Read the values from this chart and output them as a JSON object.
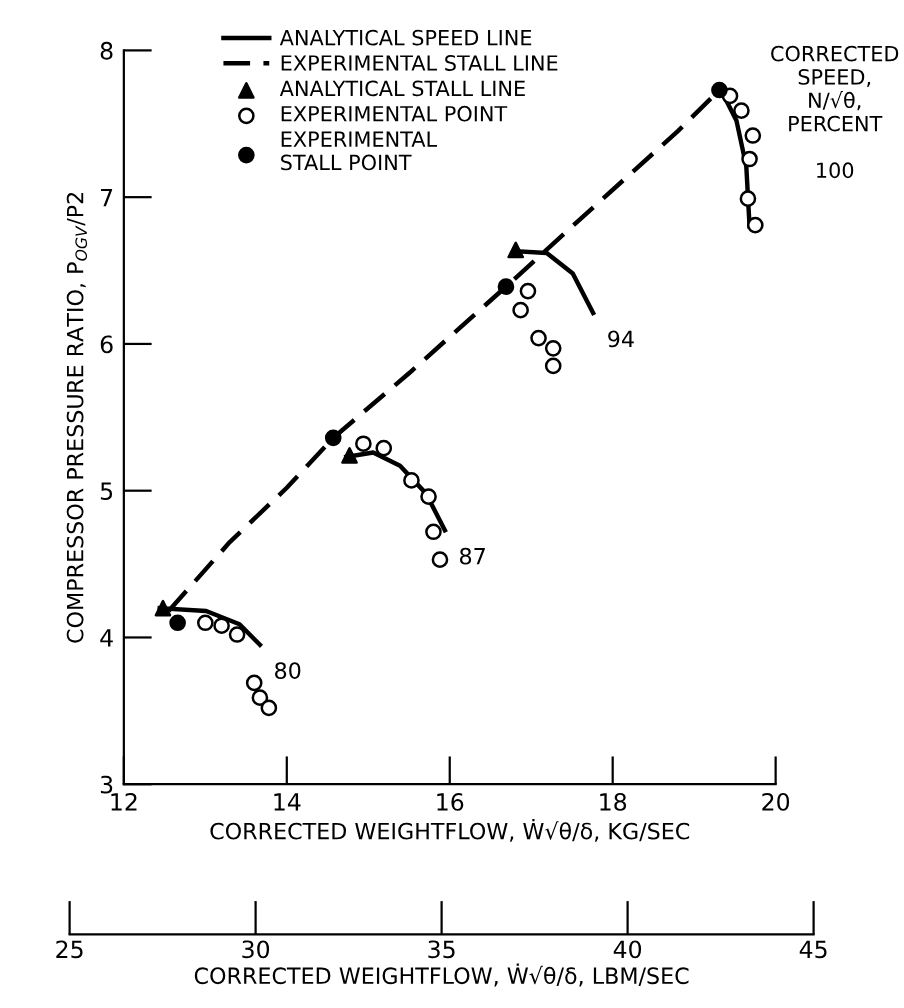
{
  "chart_data": {
    "type": "line",
    "xlabel": "CORRECTED WEIGHTFLOW, Ẇ√θ/δ, KG/SEC",
    "ylabel": "COMPRESSOR PRESSURE RATIO, P$_{OGV}$/P2",
    "x2label": "CORRECTED WEIGHTFLOW, Ẇ√θ/δ, LBM/SEC",
    "xlim": [
      12,
      20
    ],
    "xticks": [
      12,
      14,
      16,
      18,
      20
    ],
    "ylim": [
      3,
      8
    ],
    "yticks": [
      3,
      4,
      5,
      6,
      7,
      8
    ],
    "x2lim": [
      25,
      45
    ],
    "x2ticks": [
      25,
      30,
      35,
      40,
      45
    ],
    "legend": "top left",
    "grid": false,
    "series": [
      {
        "name": "ANALYTICAL SPEED LINE",
        "line_style": "solid",
        "marker": "none",
        "color": "#000000",
        "x": [
          12.44,
          13.01,
          13.42,
          13.67,
          null,
          14.73,
          15.06,
          15.39,
          15.71,
          15.94,
          null,
          16.86,
          17.19,
          17.51,
          17.76,
          null,
          19.31,
          19.52,
          19.64,
          19.68
        ],
        "values": [
          4.2,
          4.18,
          4.09,
          3.95,
          null,
          5.23,
          5.26,
          5.17,
          4.98,
          4.73,
          null,
          6.63,
          6.62,
          6.48,
          6.21,
          null,
          7.75,
          7.52,
          7.21,
          6.8
        ]
      },
      {
        "name": "EXPERIMENTAL STALL LINE",
        "line_style": "dashed",
        "marker": "none",
        "color": "#000000",
        "x": [
          12.55,
          13.3,
          14.0,
          14.57,
          15.5,
          16.69,
          17.8,
          18.8,
          19.31
        ],
        "values": [
          4.18,
          4.65,
          5.02,
          5.36,
          5.8,
          6.39,
          6.95,
          7.45,
          7.73
        ]
      },
      {
        "name": "ANALYTICAL STALL LINE",
        "type": "scatter",
        "marker": "triangle",
        "color": "#000000",
        "x": [
          12.48,
          14.77,
          16.81
        ],
        "values": [
          4.2,
          5.24,
          6.64
        ]
      },
      {
        "name": "EXPERIMENTAL POINT",
        "type": "scatter",
        "marker": "circle",
        "color": "#ffffff",
        "x": [
          13.0,
          13.2,
          13.39,
          13.6,
          13.67,
          13.78,
          14.94,
          15.19,
          15.53,
          15.74,
          15.8,
          15.88,
          16.96,
          16.87,
          17.09,
          17.27,
          17.27,
          19.44,
          19.58,
          19.72,
          19.68,
          19.66,
          19.75
        ],
        "values": [
          4.1,
          4.08,
          4.02,
          3.69,
          3.59,
          3.52,
          5.32,
          5.29,
          5.07,
          4.96,
          4.72,
          4.53,
          6.36,
          6.23,
          6.04,
          5.97,
          5.85,
          7.69,
          7.59,
          7.42,
          7.26,
          6.99,
          6.81
        ]
      },
      {
        "name": "EXPERIMENTAL\nSTALL POINT",
        "type": "scatter",
        "marker": "circle",
        "color": "#000000",
        "x": [
          12.66,
          14.57,
          16.69,
          19.31
        ],
        "values": [
          4.1,
          5.36,
          6.39,
          7.73
        ]
      }
    ],
    "annotations": [
      "CORRECTED\nSPEED,\nN/√θ,\nPERCENT\n\n100",
      {
        "text": "80",
        "x": 13.67,
        "y": 3.95
      },
      {
        "text": "87",
        "x": 15.94,
        "y": 4.73
      },
      {
        "text": "94",
        "x": 17.76,
        "y": 6.21
      }
    ]
  }
}
